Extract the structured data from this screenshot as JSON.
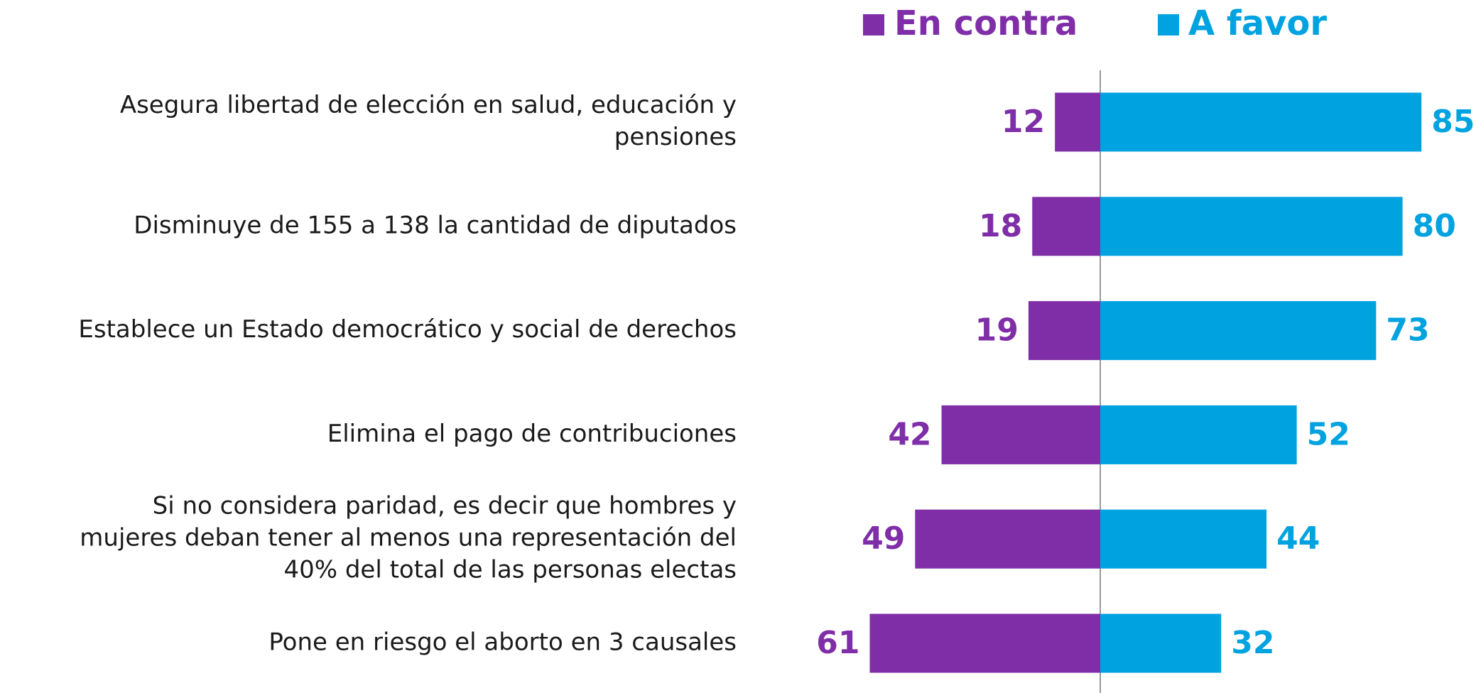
{
  "chart_data": {
    "type": "diverging-bar",
    "categories": [
      [
        "Asegura libertad de elección en salud, educación y",
        "pensiones"
      ],
      [
        "Disminuye de 155 a 138 la cantidad de diputados"
      ],
      [
        "Establece un Estado democrático y social de derechos"
      ],
      [
        "Elimina el pago de contribuciones"
      ],
      [
        "Si no considera paridad, es decir que hombres y",
        "mujeres deban tener al menos una representación del",
        "40% del total de las personas electas"
      ],
      [
        "Pone en riesgo el aborto en 3 causales"
      ]
    ],
    "series": [
      {
        "name": "En contra",
        "color": "#7f2ea8",
        "values": [
          12,
          18,
          19,
          42,
          49,
          61
        ]
      },
      {
        "name": "A favor",
        "color": "#00a3e0",
        "values": [
          85,
          80,
          73,
          52,
          44,
          32
        ]
      }
    ],
    "legend": "top"
  }
}
